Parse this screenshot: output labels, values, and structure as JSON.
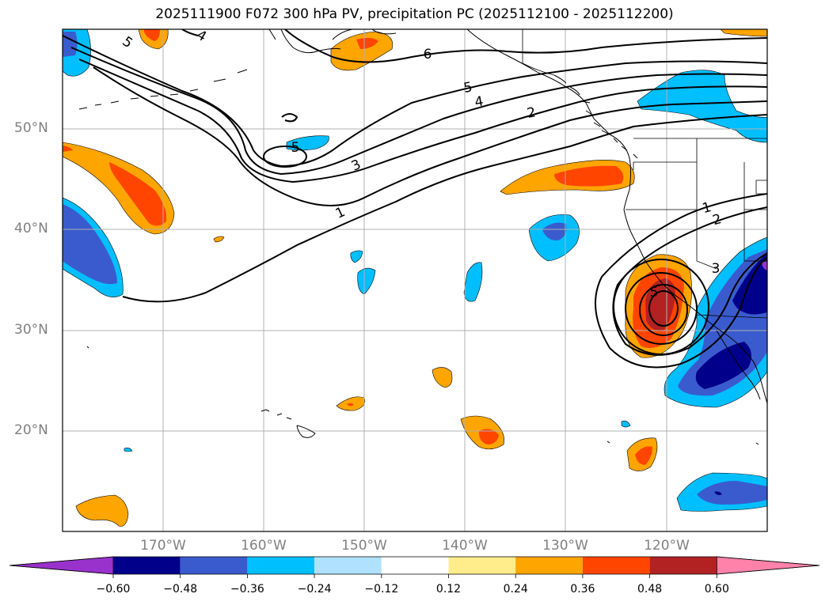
{
  "title": "2025111900 F072 300 hPa PV, precipitation PC (2025112100 - 2025112200)",
  "map": {
    "lat_labels": [
      "50°N",
      "40°N",
      "30°N",
      "20°N"
    ],
    "lon_labels": [
      "170°W",
      "160°W",
      "150°W",
      "140°W",
      "130°W",
      "120°W"
    ],
    "pv_contour_labels": [
      "5",
      "4",
      "6",
      "5",
      "4",
      "2",
      "5",
      "3",
      "1",
      "1",
      "2",
      "3",
      "5"
    ]
  },
  "colorbar": {
    "ticks": [
      "−0.60",
      "−0.48",
      "−0.36",
      "−0.24",
      "−0.12",
      "0.12",
      "0.24",
      "0.36",
      "0.48",
      "0.60"
    ],
    "colors": [
      "#9932cc",
      "#00008b",
      "#3a5bcd",
      "#00bfff",
      "#b0e2ff",
      "#ffffff",
      "#ffec8b",
      "#ffa500",
      "#ff4500",
      "#b22222",
      "#ff82ab"
    ]
  }
}
